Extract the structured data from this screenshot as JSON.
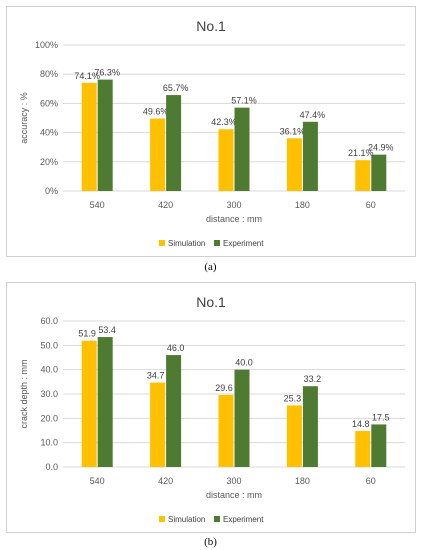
{
  "colors": {
    "simulation": "#FFC000",
    "experiment": "#4E7A32",
    "grid": "#D9D9D9",
    "text": "#404040"
  },
  "captions": [
    "(a)",
    "(b)"
  ],
  "chart_data": [
    {
      "type": "bar",
      "title": "No.1",
      "xlabel": "distance : mm",
      "ylabel": "accuracy : %",
      "categories": [
        "540",
        "420",
        "300",
        "180",
        "60"
      ],
      "ylim": [
        0,
        100
      ],
      "yticks": [
        "0%",
        "20%",
        "40%",
        "60%",
        "80%",
        "100%"
      ],
      "grid": true,
      "legend_position": "bottom",
      "series": [
        {
          "name": "Simulation",
          "values": [
            74.1,
            49.6,
            42.3,
            36.1,
            21.1
          ],
          "labels": [
            "74.1%",
            "49.6%",
            "42.3%",
            "36.1%",
            "21.1%"
          ]
        },
        {
          "name": "Experiment",
          "values": [
            76.3,
            65.7,
            57.1,
            47.4,
            24.9
          ],
          "labels": [
            "76.3%",
            "65.7%",
            "57.1%",
            "47.4%",
            "24.9%"
          ]
        }
      ]
    },
    {
      "type": "bar",
      "title": "No.1",
      "xlabel": "distance : mm",
      "ylabel": "crack depth : mm",
      "categories": [
        "540",
        "420",
        "300",
        "180",
        "60"
      ],
      "ylim": [
        0,
        60
      ],
      "yticks": [
        "0.0",
        "10.0",
        "20.0",
        "30.0",
        "40.0",
        "50.0",
        "60.0"
      ],
      "grid": true,
      "legend_position": "bottom",
      "series": [
        {
          "name": "Simulation",
          "values": [
            51.9,
            34.7,
            29.6,
            25.3,
            14.8
          ],
          "labels": [
            "51.9",
            "34.7",
            "29.6",
            "25.3",
            "14.8"
          ]
        },
        {
          "name": "Experiment",
          "values": [
            53.4,
            46.0,
            40.0,
            33.2,
            17.5
          ],
          "labels": [
            "53.4",
            "46.0",
            "40.0",
            "33.2",
            "17.5"
          ]
        }
      ]
    }
  ]
}
